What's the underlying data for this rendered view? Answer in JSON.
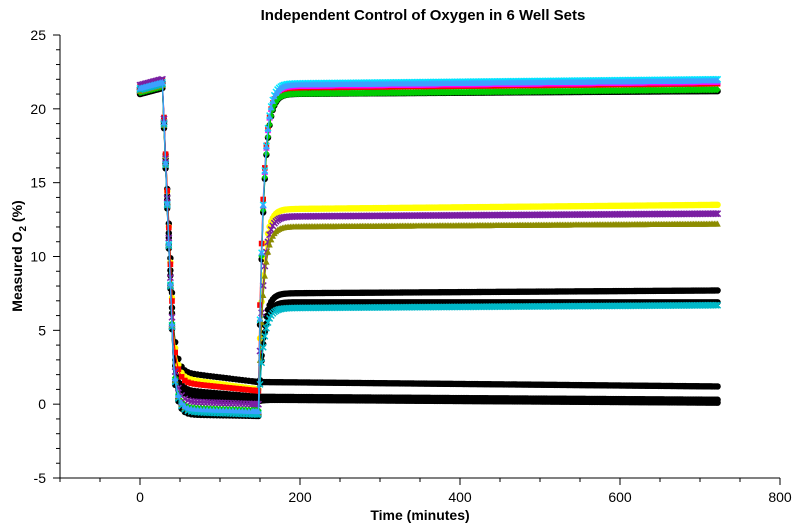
{
  "chart_data": {
    "type": "scatter",
    "title": "Independent Control of Oxygen in 6 Well Sets",
    "xlabel": "Time (minutes)",
    "ylabel_main": "Measured O",
    "ylabel_sub": "2",
    "ylabel_end": " (%)",
    "xlim": [
      -100,
      800
    ],
    "ylim": [
      -5,
      25
    ],
    "x_ticks": [
      0,
      200,
      400,
      600,
      800
    ],
    "x_tick_labels": [
      "0",
      "200",
      "400",
      "600",
      "800"
    ],
    "x_minor_step": 50,
    "y_ticks": [
      -5,
      0,
      5,
      10,
      15,
      20,
      25
    ],
    "y_tick_labels": [
      "-5",
      "0",
      "5",
      "10",
      "15",
      "20",
      "25"
    ],
    "y_minor_step": 1,
    "grid": false,
    "legend": "none",
    "time_events": {
      "drop_start": 28,
      "drop_end": 42,
      "rise_start": 148,
      "end": 723
    },
    "series": [
      {
        "color": "#000000",
        "marker": "circle",
        "initial": 21.2,
        "low_start": 2.2,
        "low_end": 1.5,
        "settle": 1.5,
        "final": 1.2
      },
      {
        "color": "#000000",
        "marker": "circle",
        "initial": 21.3,
        "low_start": 1.0,
        "low_end": 0.5,
        "settle": 0.5,
        "final": 0.3
      },
      {
        "color": "#000000",
        "marker": "circle",
        "initial": 21.1,
        "low_start": 0.6,
        "low_end": 0.2,
        "settle": 0.3,
        "final": 0.1
      },
      {
        "color": "#000000",
        "marker": "circle",
        "initial": 21.4,
        "low_start": -0.5,
        "low_end": -0.7,
        "settle": 7.5,
        "final": 7.7
      },
      {
        "color": "#000000",
        "marker": "circle",
        "initial": 21.0,
        "low_start": -0.6,
        "low_end": -0.8,
        "settle": 6.9,
        "final": 6.9
      },
      {
        "color": "#000000",
        "marker": "circle",
        "initial": 21.3,
        "low_start": -0.7,
        "low_end": -0.8,
        "settle": 21.0,
        "final": 21.2
      },
      {
        "color": "#ffff00",
        "marker": "circle",
        "initial": 21.2,
        "low_start": 1.8,
        "low_end": 1.0,
        "settle": 13.2,
        "final": 13.5
      },
      {
        "color": "#ff0000",
        "marker": "square",
        "initial": 21.5,
        "low_start": 1.5,
        "low_end": 0.9,
        "settle": 21.4,
        "final": 21.7
      },
      {
        "color": "#ff00ff",
        "marker": "triangle",
        "initial": 21.3,
        "low_start": -0.3,
        "low_end": -0.5,
        "settle": 21.5,
        "final": 21.8
      },
      {
        "color": "#00e5ff",
        "marker": "x",
        "initial": 21.4,
        "low_start": -0.4,
        "low_end": -0.6,
        "settle": 21.7,
        "final": 22.0
      },
      {
        "color": "#00cc00",
        "marker": "diamond",
        "initial": 21.1,
        "low_start": -0.2,
        "low_end": -0.4,
        "settle": 21.0,
        "final": 21.3
      },
      {
        "color": "#7a1fa2",
        "marker": "x",
        "initial": 21.6,
        "low_start": 0.2,
        "low_end": 0.0,
        "settle": 12.7,
        "final": 12.9
      },
      {
        "color": "#8c8c00",
        "marker": "triangle",
        "initial": 21.2,
        "low_start": -0.4,
        "low_end": -0.6,
        "settle": 12.0,
        "final": 12.2
      },
      {
        "color": "#00b8c8",
        "marker": "x",
        "initial": 21.3,
        "low_start": -0.5,
        "low_end": -0.7,
        "settle": 6.5,
        "final": 6.7
      },
      {
        "color": "#3ca0ff",
        "marker": "triangle",
        "initial": 21.4,
        "low_start": -0.3,
        "low_end": -0.5,
        "settle": 21.6,
        "final": 21.9
      }
    ]
  }
}
